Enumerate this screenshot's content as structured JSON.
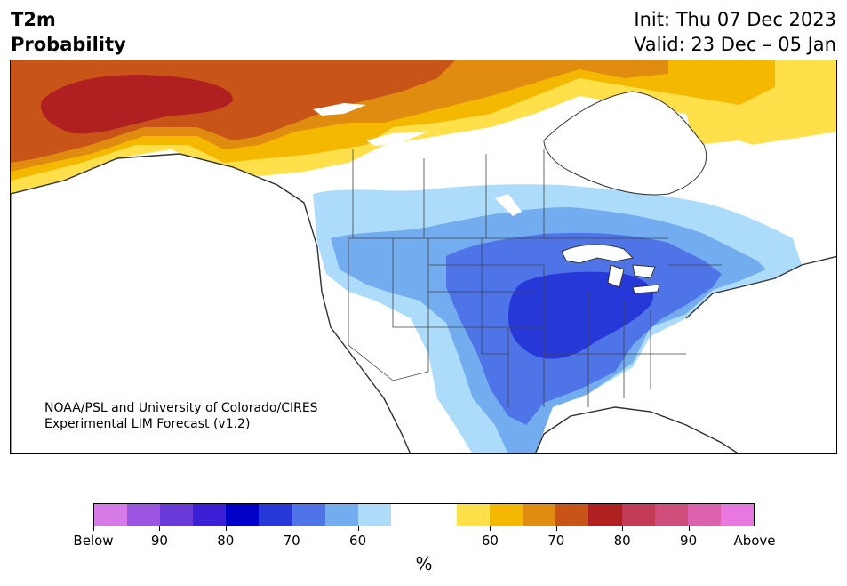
{
  "header": {
    "variable": "T2m",
    "product": "Probability",
    "init": "Init: Thu 07 Dec 2023",
    "valid": "Valid: 23 Dec – 05 Jan"
  },
  "map": {
    "credit_line1": "NOAA/PSL and University of Colorado/CIRES",
    "credit_line2": "Experimental LIM Forecast (v1.2)"
  },
  "colorbar": {
    "colors": [
      "#d67ae8",
      "#9b55e0",
      "#6a3ad8",
      "#3a1fd4",
      "#0000c8",
      "#2639d8",
      "#4f74e8",
      "#74acf0",
      "#acdcfa",
      "#ffffff",
      "#ffffff",
      "#ffe04a",
      "#f4b800",
      "#e08c10",
      "#c85418",
      "#b02020",
      "#c23a55",
      "#ce4d7a",
      "#dc62b0",
      "#e877e0"
    ],
    "labels": [
      "Below",
      "90",
      "80",
      "70",
      "60",
      "60",
      "70",
      "80",
      "90",
      "Above"
    ],
    "unit": "%"
  },
  "colors": {
    "warm_strong": "#b02020",
    "warm": "#c85418",
    "warm_mid": "#e08c10",
    "warm_light": "#f4b800",
    "warm_pale": "#ffe04a",
    "cold_pale": "#acdcfa",
    "cold_light": "#74acf0",
    "cold": "#4f74e8",
    "cold_strong": "#2639d8"
  }
}
